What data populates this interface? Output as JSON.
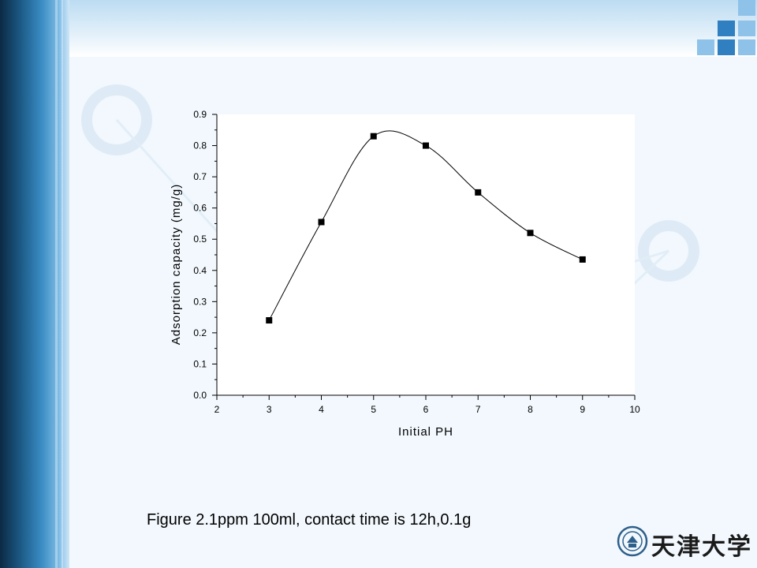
{
  "slide": {
    "caption": "Figure 2.1ppm 100ml, contact time is 12h,0.1g",
    "logo_text": "天津大学",
    "colors": {
      "left_bar_dark": "#0b2a44",
      "accent_blue": "#2f7fc1",
      "light_blue": "#8ec2e8",
      "panel": "#f2f8fd"
    }
  },
  "chart_data": {
    "type": "scatter",
    "xlabel": "Initial PH",
    "ylabel": "Adsorption capacity (mg/g)",
    "xlim": [
      2,
      10
    ],
    "ylim": [
      0.0,
      0.9
    ],
    "x_ticks": [
      "2",
      "3",
      "4",
      "5",
      "6",
      "7",
      "8",
      "9",
      "10"
    ],
    "y_ticks": [
      "0.0",
      "0.1",
      "0.2",
      "0.3",
      "0.4",
      "0.5",
      "0.6",
      "0.7",
      "0.8",
      "0.9"
    ],
    "series": [
      {
        "x": [
          3,
          4,
          5,
          6,
          7,
          8,
          9
        ],
        "y": [
          0.24,
          0.555,
          0.83,
          0.8,
          0.65,
          0.52,
          0.435
        ],
        "marker": "square",
        "fit_curve": true
      }
    ],
    "grid": false
  }
}
